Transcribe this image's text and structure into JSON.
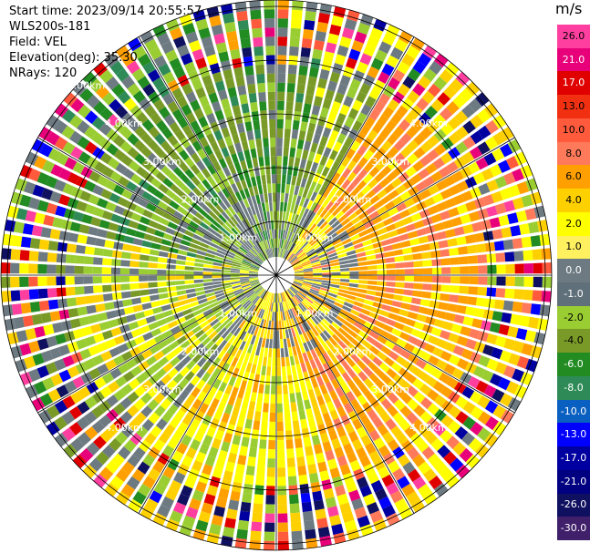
{
  "header": {
    "start_time": "Start time: 2023/09/14 20:55:57",
    "instrument": "WLS200s-181",
    "field": "Field: VEL",
    "elevation": "Elevation(deg): 35.30",
    "nrays": "NRays: 120"
  },
  "colorbar": {
    "unit": "m/s",
    "labels": [
      "26.0",
      "21.0",
      "17.0",
      "13.0",
      "10.0",
      "8.0",
      "6.0",
      "4.0",
      "2.0",
      "1.0",
      "0.0",
      "-1.0",
      "-2.0",
      "-4.0",
      "-6.0",
      "-8.0",
      "-10.0",
      "-13.0",
      "-17.0",
      "-21.0",
      "-26.0",
      "-30.0"
    ],
    "colors": [
      "#ff3fa0",
      "#e8007a",
      "#e00000",
      "#f03010",
      "#ff5a3c",
      "#ff7a5a",
      "#ffa000",
      "#ffd000",
      "#ffff00",
      "#fff060",
      "#6e7a82",
      "#60707a",
      "#9acd32",
      "#7a9a28",
      "#228b22",
      "#2e8b57",
      "#0a60c0",
      "#0000ff",
      "#0000a0",
      "#000080",
      "#101060",
      "#40206a"
    ]
  },
  "range_labels": [
    "1.00km",
    "2.00km",
    "3.00km",
    "4.00km",
    "5.00km"
  ]
}
